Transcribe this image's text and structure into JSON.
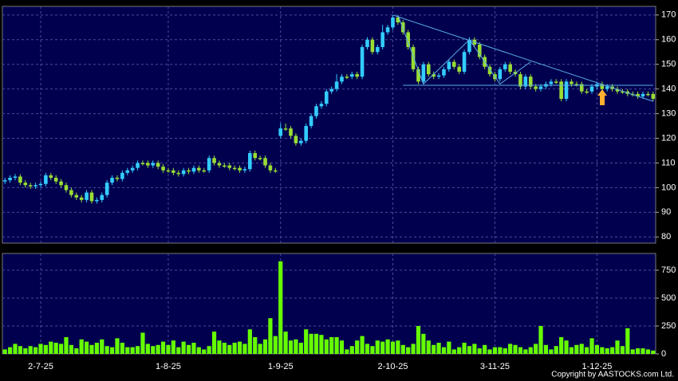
{
  "chart_data": [
    {
      "type": "candlestick",
      "ylim": [
        77.5,
        173.5
      ],
      "yticks": [
        80,
        90,
        100,
        110,
        120,
        130,
        140,
        150,
        160,
        170
      ],
      "grid": true,
      "up_color": "#33ccff",
      "down_color": "#99dd33",
      "open": [
        102.5,
        103,
        104,
        104.5,
        102,
        101,
        100.5,
        101,
        101.5,
        105,
        104,
        102.5,
        101,
        99,
        97,
        96,
        95,
        98,
        94.5,
        95,
        97,
        102,
        104,
        103.5,
        106,
        107,
        108,
        110,
        110,
        109,
        110,
        108.5,
        107,
        107,
        106,
        105.5,
        107,
        106.5,
        108,
        107,
        107,
        112,
        110,
        109,
        109,
        108,
        108,
        107,
        107.5,
        114,
        112,
        112,
        109,
        107,
        121,
        124,
        124,
        121,
        118,
        119,
        125,
        129,
        133,
        134,
        139,
        140,
        143,
        145,
        145,
        146,
        145,
        157,
        160,
        155,
        157,
        163,
        165,
        169,
        167,
        163,
        157,
        148,
        143,
        150,
        146,
        145,
        145.5,
        148,
        151,
        149,
        147,
        155,
        160,
        158,
        153,
        149,
        146,
        144,
        148,
        150,
        147,
        146,
        141,
        145,
        141,
        140,
        141,
        142,
        143,
        143,
        136,
        143,
        142,
        142,
        139,
        139,
        141,
        142,
        140,
        141,
        140,
        139,
        139,
        138,
        138,
        137,
        138,
        138
      ],
      "high": [
        104,
        105,
        105.5,
        105.5,
        103,
        102,
        102,
        102.5,
        106,
        106,
        105,
        103.5,
        102,
        100,
        98,
        97,
        99,
        99,
        96,
        98,
        103,
        105,
        105,
        107,
        108,
        109,
        111,
        111,
        111,
        111,
        111,
        109.5,
        108,
        108,
        107,
        108,
        108,
        109,
        109,
        108,
        113,
        113,
        111,
        110,
        110,
        109,
        109,
        108.5,
        115,
        115,
        113,
        113,
        110,
        108,
        126,
        126,
        125,
        122,
        120,
        126,
        130,
        134,
        135,
        140,
        141,
        146,
        146,
        146,
        147,
        147,
        158,
        161,
        161,
        158,
        166,
        166,
        170,
        170,
        168,
        164,
        158,
        149,
        151,
        151,
        147,
        146.5,
        149,
        152,
        152,
        150,
        156,
        161,
        161,
        159,
        154,
        150,
        147,
        149,
        151,
        151,
        148,
        147,
        146,
        146,
        142,
        142,
        143,
        144,
        144,
        144,
        144,
        144,
        143,
        143,
        140,
        142,
        143,
        143,
        142,
        142,
        141,
        140,
        140,
        139,
        139,
        139,
        139,
        139
      ],
      "low": [
        101.5,
        102,
        103,
        101,
        100,
        99.5,
        99.5,
        100,
        100.5,
        103,
        101.5,
        100,
        98,
        96,
        95,
        94,
        94,
        93.5,
        93.5,
        94,
        96,
        101,
        102.5,
        102.5,
        105,
        106,
        107,
        109,
        108,
        108,
        107.5,
        106,
        106,
        105,
        104.5,
        104.5,
        105.5,
        105.5,
        106,
        106,
        106,
        109,
        108,
        108,
        107,
        107,
        106,
        106,
        106.5,
        111,
        111,
        108,
        106,
        106,
        120,
        123,
        120,
        117,
        117,
        118,
        124,
        128,
        132,
        133,
        138,
        139,
        142,
        144,
        144,
        144,
        144,
        156,
        154,
        154,
        156,
        162,
        164,
        166,
        162,
        156,
        147,
        142,
        142,
        145,
        144,
        144,
        144.5,
        147,
        148,
        146,
        146,
        154,
        157,
        152,
        148,
        145,
        143,
        143,
        147,
        146,
        145,
        140,
        140,
        140,
        139,
        139,
        140,
        141,
        142,
        135,
        135,
        141,
        141,
        138,
        138,
        138,
        140,
        139,
        139,
        139,
        138,
        138,
        137,
        137,
        136,
        136,
        137,
        135
      ],
      "close": [
        103,
        104,
        104.5,
        102,
        101,
        100.5,
        101,
        101.5,
        105,
        104,
        102.5,
        101,
        99,
        97,
        96,
        95,
        98,
        94.5,
        95,
        97,
        102,
        104,
        103.5,
        106,
        107,
        108,
        110,
        110,
        109,
        110,
        108.5,
        107,
        107,
        106,
        105.5,
        107,
        106.5,
        108,
        107,
        107,
        112,
        110,
        109,
        109,
        108,
        108,
        107,
        107.5,
        114,
        112,
        112,
        109,
        107,
        107,
        124,
        124,
        121,
        118,
        119,
        125,
        129,
        133,
        134,
        139,
        140,
        143,
        145,
        145,
        146,
        145,
        157,
        160,
        155,
        157,
        163,
        165,
        169,
        167,
        163,
        157,
        148,
        143,
        150,
        146,
        145,
        145.5,
        148,
        151,
        149,
        147,
        155,
        160,
        158,
        153,
        149,
        146,
        144,
        148,
        150,
        147,
        146,
        141,
        145,
        141,
        140,
        141,
        142,
        143,
        143,
        136,
        143,
        142,
        142,
        139,
        139,
        141,
        142,
        140,
        141,
        140,
        139,
        139,
        138,
        138,
        137,
        138,
        138,
        136
      ],
      "trendlines": [
        {
          "color": "#5aaee6",
          "x": [
            76,
            127
          ],
          "y": [
            170,
            135
          ]
        },
        {
          "color": "#5aaee6",
          "x": [
            78,
            127
          ],
          "y": [
            141.5,
            141.5
          ]
        },
        {
          "color": "#5aaee6",
          "x": [
            77,
            82,
            91,
            97,
            103
          ],
          "y": [
            170,
            142,
            160,
            142,
            151
          ]
        }
      ]
    },
    {
      "type": "bar",
      "color": "#66ff00",
      "ylim": [
        0,
        900
      ],
      "yticks": [
        0,
        250,
        500,
        750
      ],
      "grid": true,
      "categories": [
        null,
        null,
        null,
        null,
        null,
        null,
        null,
        "2-7-25",
        null,
        null,
        null,
        null,
        null,
        null,
        null,
        null,
        null,
        null,
        null,
        null,
        null,
        null,
        null,
        null,
        null,
        null,
        null,
        null,
        null,
        null,
        null,
        null,
        "1-8-25",
        null,
        null,
        null,
        null,
        null,
        null,
        null,
        null,
        null,
        null,
        null,
        null,
        null,
        null,
        null,
        null,
        null,
        null,
        null,
        null,
        null,
        "1-9-25",
        null,
        null,
        null,
        null,
        null,
        null,
        null,
        null,
        null,
        null,
        null,
        null,
        null,
        null,
        null,
        null,
        null,
        null,
        null,
        null,
        null,
        "2-10-25",
        null,
        null,
        null,
        null,
        null,
        null,
        null,
        null,
        null,
        null,
        null,
        null,
        null,
        null,
        null,
        null,
        null,
        null,
        null,
        "3-11-25",
        null,
        null,
        null,
        null,
        null,
        null,
        null,
        null,
        null,
        null,
        null,
        null,
        null,
        null,
        null,
        null,
        null,
        null,
        null,
        "1-12-25",
        null,
        null,
        null,
        null,
        null,
        null,
        null,
        null,
        null,
        null,
        null
      ],
      "values": [
        40,
        60,
        90,
        70,
        50,
        70,
        60,
        90,
        80,
        110,
        100,
        90,
        150,
        80,
        50,
        130,
        110,
        80,
        100,
        130,
        70,
        60,
        140,
        100,
        60,
        60,
        70,
        190,
        90,
        70,
        80,
        110,
        80,
        120,
        60,
        110,
        80,
        100,
        60,
        40,
        70,
        200,
        120,
        100,
        80,
        100,
        110,
        90,
        220,
        150,
        90,
        130,
        320,
        160,
        830,
        200,
        120,
        130,
        100,
        220,
        180,
        180,
        170,
        130,
        150,
        150,
        120,
        40,
        70,
        120,
        160,
        90,
        70,
        120,
        110,
        130,
        110,
        120,
        80,
        60,
        90,
        250,
        180,
        120,
        80,
        100,
        60,
        110,
        40,
        60,
        100,
        70,
        90,
        50,
        80,
        40,
        60,
        60,
        50,
        90,
        80,
        60,
        40,
        60,
        90,
        250,
        80,
        40,
        70,
        150,
        120,
        60,
        80,
        90,
        60,
        140,
        80,
        60,
        50,
        60,
        120,
        70,
        230,
        40,
        50,
        50,
        40,
        30
      ]
    },
    {
      "type": "note",
      "text": "Copyright by AASTOCKS.com Ltd."
    }
  ]
}
